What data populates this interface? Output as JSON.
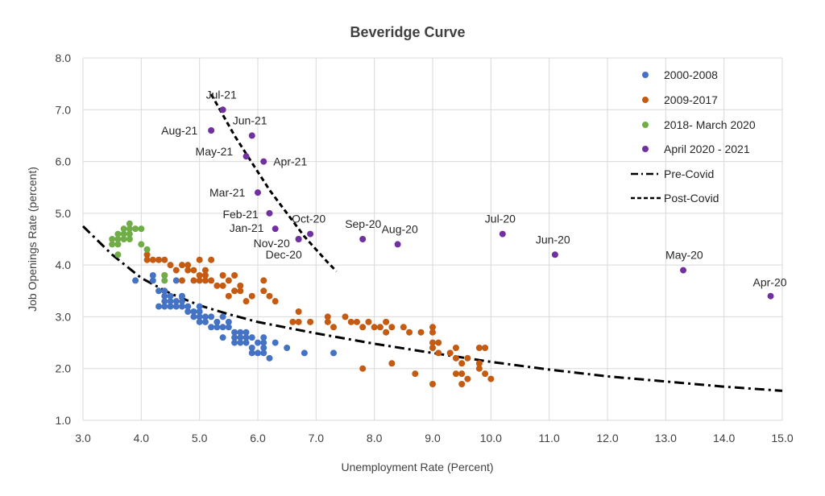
{
  "chart_data": {
    "type": "scatter",
    "title": "Beveridge Curve",
    "xlabel": "Unemployment Rate (Percent)",
    "ylabel": "Job Openings Rate (percent)",
    "xlim": [
      3.0,
      15.0
    ],
    "ylim": [
      1.0,
      8.0
    ],
    "x_ticks": [
      "3.0",
      "4.0",
      "5.0",
      "6.0",
      "7.0",
      "8.0",
      "9.0",
      "10.0",
      "11.0",
      "12.0",
      "13.0",
      "14.0",
      "15.0"
    ],
    "y_ticks": [
      "1.0",
      "2.0",
      "3.0",
      "4.0",
      "5.0",
      "6.0",
      "7.0",
      "8.0"
    ],
    "grid": true,
    "legend_position": "top-right",
    "colors": {
      "blue": "#4472c4",
      "orange": "#c55a11",
      "green": "#70ad47",
      "purple": "#7030a0",
      "line": "#000000"
    },
    "series": [
      {
        "name": "2000-2008",
        "color": "#4472c4",
        "points": [
          [
            3.9,
            3.7
          ],
          [
            4.2,
            3.7
          ],
          [
            4.2,
            3.8
          ],
          [
            4.3,
            3.5
          ],
          [
            4.3,
            3.2
          ],
          [
            4.4,
            3.5
          ],
          [
            4.4,
            3.4
          ],
          [
            4.4,
            3.3
          ],
          [
            4.4,
            3.2
          ],
          [
            4.5,
            3.4
          ],
          [
            4.5,
            3.3
          ],
          [
            4.5,
            3.2
          ],
          [
            4.6,
            3.3
          ],
          [
            4.6,
            3.2
          ],
          [
            4.6,
            3.7
          ],
          [
            4.7,
            3.4
          ],
          [
            4.7,
            3.2
          ],
          [
            4.7,
            3.3
          ],
          [
            4.8,
            3.1
          ],
          [
            4.8,
            3.2
          ],
          [
            4.9,
            3.0
          ],
          [
            4.9,
            3.1
          ],
          [
            5.0,
            3.0
          ],
          [
            5.0,
            3.1
          ],
          [
            5.0,
            3.2
          ],
          [
            5.0,
            2.9
          ],
          [
            5.1,
            2.9
          ],
          [
            5.1,
            3.0
          ],
          [
            5.2,
            2.8
          ],
          [
            5.2,
            3.0
          ],
          [
            5.3,
            2.8
          ],
          [
            5.3,
            2.9
          ],
          [
            5.4,
            2.6
          ],
          [
            5.4,
            2.8
          ],
          [
            5.4,
            3.0
          ],
          [
            5.5,
            2.8
          ],
          [
            5.5,
            2.9
          ],
          [
            5.6,
            2.5
          ],
          [
            5.6,
            2.6
          ],
          [
            5.6,
            2.7
          ],
          [
            5.7,
            2.5
          ],
          [
            5.7,
            2.6
          ],
          [
            5.7,
            2.7
          ],
          [
            5.8,
            2.5
          ],
          [
            5.8,
            2.6
          ],
          [
            5.8,
            2.7
          ],
          [
            5.9,
            2.3
          ],
          [
            5.9,
            2.4
          ],
          [
            5.9,
            2.6
          ],
          [
            6.0,
            2.3
          ],
          [
            6.0,
            2.5
          ],
          [
            6.1,
            2.3
          ],
          [
            6.1,
            2.4
          ],
          [
            6.1,
            2.5
          ],
          [
            6.1,
            2.6
          ],
          [
            6.2,
            2.2
          ],
          [
            6.3,
            2.5
          ],
          [
            6.5,
            2.4
          ],
          [
            6.8,
            2.3
          ],
          [
            7.3,
            2.3
          ]
        ]
      },
      {
        "name": "2009-2017",
        "color": "#c55a11",
        "points": [
          [
            4.1,
            4.2
          ],
          [
            4.1,
            4.1
          ],
          [
            4.2,
            4.1
          ],
          [
            4.3,
            4.1
          ],
          [
            4.4,
            4.1
          ],
          [
            4.4,
            3.8
          ],
          [
            4.5,
            4.0
          ],
          [
            4.6,
            3.9
          ],
          [
            4.7,
            3.7
          ],
          [
            4.7,
            4.0
          ],
          [
            4.8,
            3.9
          ],
          [
            4.8,
            4.0
          ],
          [
            4.9,
            3.7
          ],
          [
            4.9,
            3.9
          ],
          [
            5.0,
            3.7
          ],
          [
            5.0,
            3.8
          ],
          [
            5.0,
            4.1
          ],
          [
            5.1,
            3.8
          ],
          [
            5.1,
            3.9
          ],
          [
            5.1,
            3.7
          ],
          [
            5.2,
            3.7
          ],
          [
            5.2,
            4.1
          ],
          [
            5.3,
            3.6
          ],
          [
            5.4,
            3.6
          ],
          [
            5.4,
            3.8
          ],
          [
            5.5,
            3.4
          ],
          [
            5.5,
            3.7
          ],
          [
            5.6,
            3.8
          ],
          [
            5.6,
            3.5
          ],
          [
            5.7,
            3.6
          ],
          [
            5.7,
            3.5
          ],
          [
            5.8,
            3.3
          ],
          [
            5.9,
            3.4
          ],
          [
            6.1,
            3.7
          ],
          [
            6.1,
            3.5
          ],
          [
            6.2,
            3.4
          ],
          [
            6.3,
            3.3
          ],
          [
            6.6,
            2.9
          ],
          [
            6.7,
            2.9
          ],
          [
            6.7,
            3.1
          ],
          [
            6.9,
            2.9
          ],
          [
            7.2,
            2.9
          ],
          [
            7.2,
            3.0
          ],
          [
            7.3,
            2.8
          ],
          [
            7.5,
            3.0
          ],
          [
            7.6,
            2.9
          ],
          [
            7.7,
            2.9
          ],
          [
            7.8,
            2.8
          ],
          [
            7.8,
            2.0
          ],
          [
            7.9,
            2.9
          ],
          [
            8.0,
            2.8
          ],
          [
            8.1,
            2.8
          ],
          [
            8.2,
            2.9
          ],
          [
            8.2,
            2.7
          ],
          [
            8.3,
            2.8
          ],
          [
            8.3,
            2.1
          ],
          [
            8.5,
            2.8
          ],
          [
            8.6,
            2.7
          ],
          [
            8.7,
            1.9
          ],
          [
            8.8,
            2.7
          ],
          [
            9.0,
            2.8
          ],
          [
            9.0,
            2.7
          ],
          [
            9.0,
            2.5
          ],
          [
            9.0,
            2.4
          ],
          [
            9.0,
            1.7
          ],
          [
            9.1,
            2.5
          ],
          [
            9.1,
            2.3
          ],
          [
            9.3,
            2.3
          ],
          [
            9.4,
            2.4
          ],
          [
            9.4,
            2.2
          ],
          [
            9.4,
            1.9
          ],
          [
            9.5,
            2.1
          ],
          [
            9.5,
            1.9
          ],
          [
            9.5,
            1.7
          ],
          [
            9.6,
            2.2
          ],
          [
            9.6,
            1.8
          ],
          [
            9.8,
            2.4
          ],
          [
            9.8,
            2.1
          ],
          [
            9.8,
            2.0
          ],
          [
            9.9,
            2.4
          ],
          [
            9.9,
            1.9
          ],
          [
            10.0,
            1.8
          ]
        ]
      },
      {
        "name": "2018- March 2020",
        "color": "#70ad47",
        "points": [
          [
            3.5,
            4.5
          ],
          [
            3.5,
            4.4
          ],
          [
            3.6,
            4.5
          ],
          [
            3.6,
            4.6
          ],
          [
            3.6,
            4.4
          ],
          [
            3.6,
            4.2
          ],
          [
            3.7,
            4.6
          ],
          [
            3.7,
            4.7
          ],
          [
            3.7,
            4.5
          ],
          [
            3.8,
            4.5
          ],
          [
            3.8,
            4.6
          ],
          [
            3.8,
            4.7
          ],
          [
            3.8,
            4.8
          ],
          [
            3.9,
            4.7
          ],
          [
            4.0,
            4.7
          ],
          [
            4.0,
            4.4
          ],
          [
            4.1,
            4.3
          ],
          [
            4.4,
            3.8
          ],
          [
            4.4,
            3.7
          ]
        ]
      },
      {
        "name": "April 2020 - 2021",
        "color": "#7030a0",
        "points": [
          {
            "x": 14.8,
            "y": 3.4,
            "label": "Apr-20"
          },
          {
            "x": 13.3,
            "y": 3.9,
            "label": "May-20"
          },
          {
            "x": 11.1,
            "y": 4.2,
            "label": "Jun-20"
          },
          {
            "x": 10.2,
            "y": 4.6,
            "label": "Jul-20"
          },
          {
            "x": 8.4,
            "y": 4.4,
            "label": "Aug-20"
          },
          {
            "x": 7.8,
            "y": 4.5,
            "label": "Sep-20"
          },
          {
            "x": 6.9,
            "y": 4.6,
            "label": "Oct-20"
          },
          {
            "x": 6.7,
            "y": 4.5,
            "label": "Nov-20"
          },
          {
            "x": 6.7,
            "y": 4.5,
            "label": "Dec-20"
          },
          {
            "x": 6.3,
            "y": 4.7,
            "label": "Jan-21"
          },
          {
            "x": 6.2,
            "y": 5.0,
            "label": "Feb-21"
          },
          {
            "x": 6.0,
            "y": 5.4,
            "label": "Mar-21"
          },
          {
            "x": 6.1,
            "y": 6.0,
            "label": "Apr-21"
          },
          {
            "x": 5.8,
            "y": 6.1,
            "label": "May-21"
          },
          {
            "x": 5.9,
            "y": 6.5,
            "label": "Jun-21"
          },
          {
            "x": 5.4,
            "y": 7.0,
            "label": "Jul-21"
          },
          {
            "x": 5.2,
            "y": 6.6,
            "label": "Aug-21"
          }
        ]
      }
    ],
    "lines": [
      {
        "name": "Pre-Covid",
        "style": "dash-dot",
        "points": [
          [
            3.0,
            4.75
          ],
          [
            3.5,
            4.2
          ],
          [
            4.0,
            3.75
          ],
          [
            4.5,
            3.45
          ],
          [
            5.0,
            3.22
          ],
          [
            5.5,
            3.05
          ],
          [
            6.0,
            2.9
          ],
          [
            7.0,
            2.68
          ],
          [
            8.0,
            2.48
          ],
          [
            9.0,
            2.3
          ],
          [
            10.0,
            2.13
          ],
          [
            11.0,
            1.98
          ],
          [
            12.0,
            1.85
          ],
          [
            13.0,
            1.75
          ],
          [
            14.0,
            1.65
          ],
          [
            15.0,
            1.57
          ]
        ]
      },
      {
        "name": "Post-Covid",
        "style": "dashed",
        "points": [
          [
            5.2,
            7.3
          ],
          [
            5.4,
            6.9
          ],
          [
            5.6,
            6.5
          ],
          [
            5.8,
            6.15
          ],
          [
            6.0,
            5.8
          ],
          [
            6.2,
            5.45
          ],
          [
            6.4,
            5.15
          ],
          [
            6.6,
            4.85
          ],
          [
            6.8,
            4.55
          ],
          [
            7.0,
            4.3
          ],
          [
            7.2,
            4.05
          ],
          [
            7.35,
            3.88
          ]
        ]
      }
    ]
  }
}
